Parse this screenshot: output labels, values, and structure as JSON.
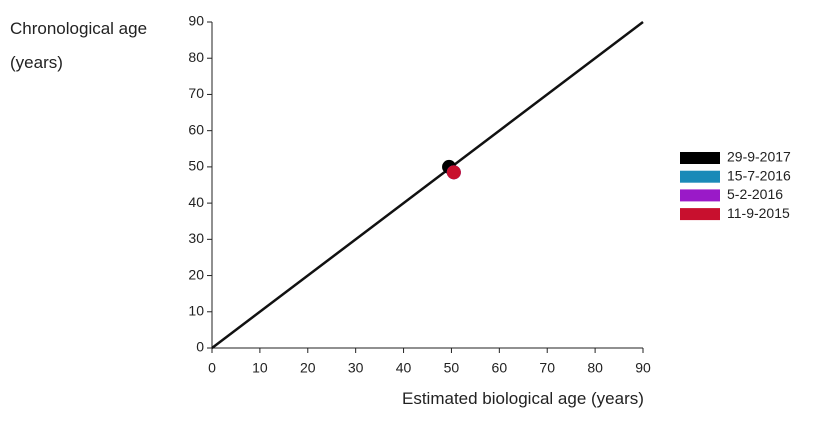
{
  "chart_data": {
    "type": "scatter",
    "y_label": "Chronological age (years)",
    "x_label": "Estimated biological age (years)",
    "xlim": [
      0,
      90
    ],
    "ylim": [
      0,
      90
    ],
    "xticks": [
      0,
      10,
      20,
      30,
      40,
      50,
      60,
      70,
      80,
      90
    ],
    "yticks": [
      0,
      10,
      20,
      30,
      40,
      50,
      60,
      70,
      80,
      90
    ],
    "legend": "right",
    "series": [
      {
        "name": "29-9-2017",
        "color": "#000000",
        "x": [
          49.5
        ],
        "values": [
          50
        ]
      },
      {
        "name": "15-7-2016",
        "color": "#1a8ab8",
        "x": [
          50.5
        ],
        "values": [
          48.5
        ]
      },
      {
        "name": "5-2-2016",
        "color": "#9a1ac8",
        "x": [
          50.5
        ],
        "values": [
          48.5
        ]
      },
      {
        "name": "11-9-2015",
        "color": "#c8102e",
        "x": [
          50.5
        ],
        "values": [
          48.5
        ]
      }
    ]
  }
}
